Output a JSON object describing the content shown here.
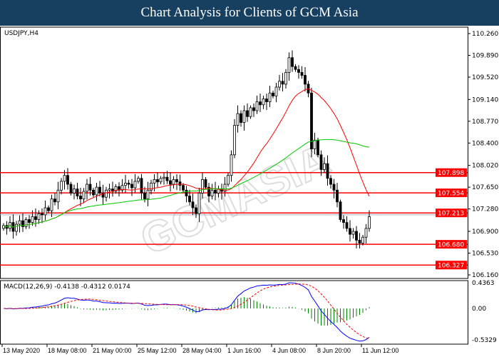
{
  "header": {
    "title": "Chart Analysis for Clients of GCM Asia"
  },
  "watermark": "GCMASIA GLOBAL CAPITAL MARKETS",
  "chart_data": [
    {
      "type": "candlestick",
      "symbol_label": "USDJPY,H4",
      "ylim": [
        106.16,
        110.26
      ],
      "y_ticks": [
        "110.260",
        "109.890",
        "109.520",
        "109.140",
        "108.770",
        "108.400",
        "108.020",
        "107.650",
        "107.280",
        "106.900",
        "106.530",
        "106.160"
      ],
      "x_ticks": [
        "13 May 2020",
        "18 May 08:00",
        "21 May 00:00",
        "25 May 12:00",
        "28 May 04:00",
        "1 Jun 16:00",
        "4 Jun 08:00",
        "8 Jun 20:00",
        "11 Jun 12:00"
      ],
      "closes": [
        107.0,
        106.95,
        107.05,
        106.9,
        107.02,
        107.08,
        106.98,
        107.1,
        107.05,
        107.15,
        107.1,
        107.2,
        107.18,
        107.3,
        107.25,
        107.45,
        107.4,
        107.6,
        107.75,
        107.85,
        107.7,
        107.55,
        107.62,
        107.5,
        107.45,
        107.58,
        107.7,
        107.6,
        107.52,
        107.65,
        107.55,
        107.48,
        107.6,
        107.62,
        107.58,
        107.66,
        107.6,
        107.68,
        107.72,
        107.7,
        107.64,
        107.75,
        107.8,
        107.55,
        107.45,
        107.6,
        107.72,
        107.78,
        107.74,
        107.8,
        107.82,
        107.76,
        107.7,
        107.78,
        107.74,
        107.68,
        107.6,
        107.5,
        107.4,
        107.3,
        107.2,
        107.55,
        107.78,
        107.65,
        107.5,
        107.6,
        107.55,
        107.62,
        107.58,
        107.7,
        107.85,
        108.2,
        108.7,
        108.9,
        108.75,
        108.95,
        108.85,
        109.0,
        108.95,
        109.1,
        109.05,
        109.15,
        109.1,
        109.25,
        109.2,
        109.35,
        109.45,
        109.4,
        109.6,
        109.85,
        109.7,
        109.65,
        109.6,
        109.55,
        109.4,
        109.25,
        108.3,
        108.45,
        108.2,
        107.95,
        108.05,
        107.8,
        107.7,
        107.6,
        107.4,
        107.1,
        107.05,
        106.95,
        106.85,
        106.9,
        106.75,
        106.7,
        106.8,
        106.95,
        107.15
      ],
      "moving_averages": [
        {
          "period": 20,
          "color": "#ff0000"
        },
        {
          "period": 50,
          "color": "#00cc00"
        }
      ],
      "levels": [
        {
          "value": "107.898"
        },
        {
          "value": "107.554"
        },
        {
          "value": "107.213"
        },
        {
          "value": "106.680"
        },
        {
          "value": "106.327"
        }
      ],
      "level_color": "#ff0000",
      "up_color": "#000000",
      "down_color": "#000000"
    },
    {
      "type": "macd",
      "label": "MACD(12,26,9) -0.4138 -0.4312 0.0174",
      "ylim": [
        -0.5329,
        0.4363
      ],
      "y_ticks": [
        "0.4363",
        "0.00",
        "-0.5329"
      ],
      "colors": {
        "main": "#0000ff",
        "signal": "#ff0000",
        "histogram": "#008000"
      }
    }
  ]
}
